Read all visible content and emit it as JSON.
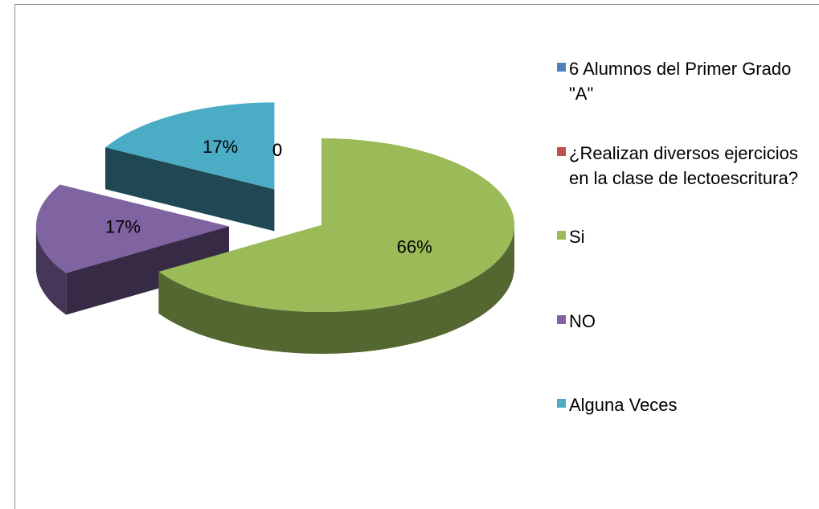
{
  "chart_data": {
    "type": "pie",
    "categories": [
      "6 Alumnos del Primer Grado \"A\"",
      "¿Realizan diversos ejercicios en la clase de lectoescritura?",
      "Si",
      "NO",
      "Alguna Veces"
    ],
    "values": [
      0,
      0,
      66,
      17,
      17
    ],
    "value_labels": [
      "0",
      "0",
      "66%",
      "17%",
      "17%"
    ],
    "colors": [
      "#4f81bd",
      "#c0504d",
      "#9bbb59",
      "#8064a2",
      "#4bacc6"
    ],
    "legend": "right"
  }
}
